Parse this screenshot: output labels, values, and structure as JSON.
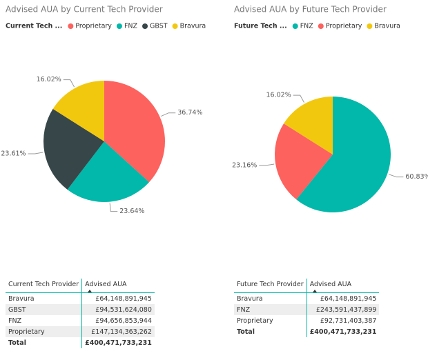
{
  "chart_data": [
    {
      "type": "pie",
      "title": "Advised AUA by Current Tech Provider",
      "legend_title": "Current Tech ...",
      "categories": [
        "Proprietary",
        "FNZ",
        "GBST",
        "Bravura"
      ],
      "values": [
        36.74,
        23.64,
        23.61,
        16.02
      ],
      "value_labels": [
        "36.74%",
        "23.64%",
        "23.61%",
        "16.02%"
      ],
      "colors": [
        "#fd625e",
        "#01b8aa",
        "#374649",
        "#f2c80f"
      ]
    },
    {
      "type": "pie",
      "title": "Advised AUA by Future Tech Provider",
      "legend_title": "Future Tech ...",
      "categories": [
        "FNZ",
        "Proprietary",
        "Bravura"
      ],
      "values": [
        60.83,
        23.16,
        16.02
      ],
      "value_labels": [
        "60.83%",
        "23.16%",
        "16.02%"
      ],
      "colors": [
        "#01b8aa",
        "#fd625e",
        "#f2c80f"
      ]
    }
  ],
  "tables": [
    {
      "header": [
        "Current Tech Provider",
        "Advised AUA"
      ],
      "rows": [
        [
          "Bravura",
          "£64,148,891,945"
        ],
        [
          "GBST",
          "£94,531,624,080"
        ],
        [
          "FNZ",
          "£94,656,853,944"
        ],
        [
          "Proprietary",
          "£147,134,363,262"
        ]
      ],
      "total": [
        "Total",
        "£400,471,733,231"
      ]
    },
    {
      "header": [
        "Future Tech Provider",
        "Advised AUA"
      ],
      "rows": [
        [
          "Bravura",
          "£64,148,891,945"
        ],
        [
          "FNZ",
          "£243,591,437,899"
        ],
        [
          "Proprietary",
          "£92,731,403,387"
        ]
      ],
      "total": [
        "Total",
        "£400,471,733,231"
      ]
    }
  ]
}
